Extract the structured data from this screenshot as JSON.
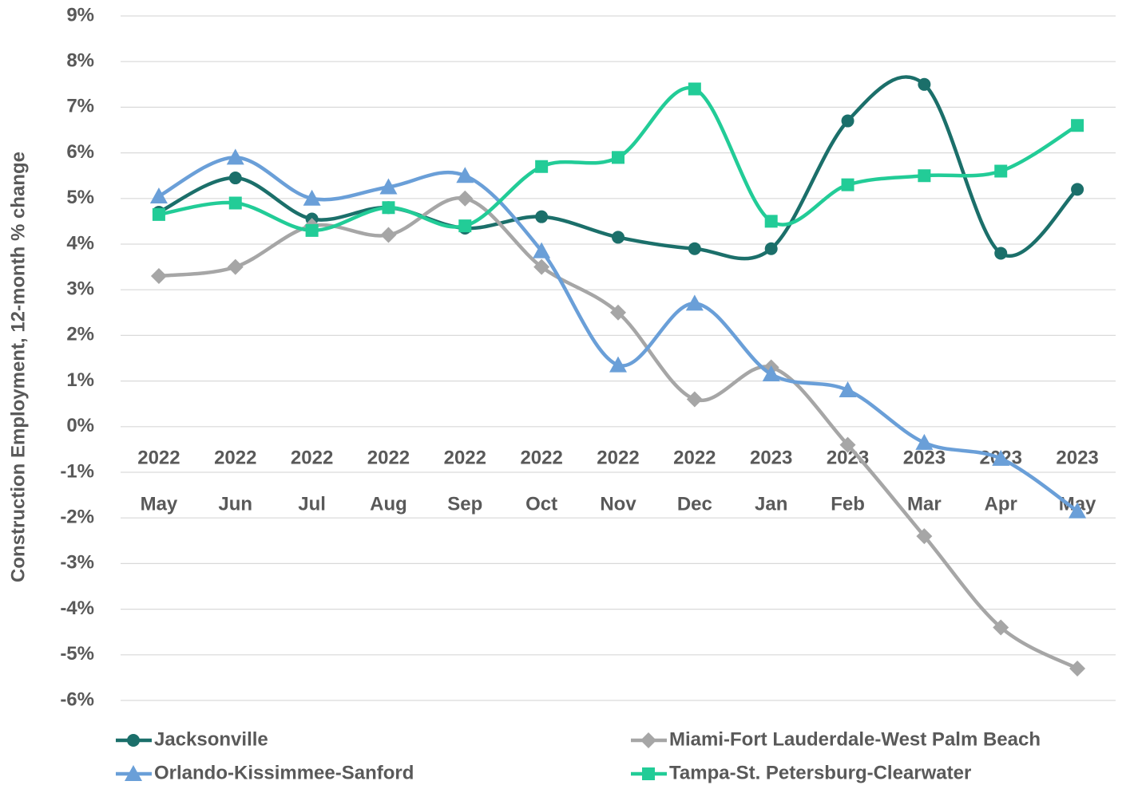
{
  "chart_data": {
    "type": "line",
    "smooth": true,
    "grid": true,
    "legend": "bottom",
    "ylabel": "Construction  Employment, 12-month % change",
    "categories": [
      [
        "2022",
        "May"
      ],
      [
        "2022",
        "Jun"
      ],
      [
        "2022",
        "Jul"
      ],
      [
        "2022",
        "Aug"
      ],
      [
        "2022",
        "Sep"
      ],
      [
        "2022",
        "Oct"
      ],
      [
        "2022",
        "Nov"
      ],
      [
        "2022",
        "Dec"
      ],
      [
        "2023",
        "Jan"
      ],
      [
        "2023",
        "Feb"
      ],
      [
        "2023",
        "Mar"
      ],
      [
        "2023",
        "Apr"
      ],
      [
        "2023",
        "May"
      ]
    ],
    "ylim": [
      -6,
      9
    ],
    "yticks": [
      {
        "value": 9,
        "label": "9%"
      },
      {
        "value": 8,
        "label": "8%"
      },
      {
        "value": 7,
        "label": "7%"
      },
      {
        "value": 6,
        "label": "6%"
      },
      {
        "value": 5,
        "label": "5%"
      },
      {
        "value": 4,
        "label": "4%"
      },
      {
        "value": 3,
        "label": "3%"
      },
      {
        "value": 2,
        "label": "2%"
      },
      {
        "value": 1,
        "label": "1%"
      },
      {
        "value": 0,
        "label": "0%"
      },
      {
        "value": -1,
        "label": "-1%"
      },
      {
        "value": -2,
        "label": "-2%"
      },
      {
        "value": -3,
        "label": "-3%"
      },
      {
        "value": -4,
        "label": "-4%"
      },
      {
        "value": -5,
        "label": "-5%"
      },
      {
        "value": -6,
        "label": "-6%"
      }
    ],
    "series": [
      {
        "name": "Jacksonville",
        "color": "#1b6f6a",
        "marker": "circle",
        "values": [
          4.7,
          5.45,
          4.55,
          4.8,
          4.35,
          4.6,
          4.15,
          3.9,
          3.9,
          6.7,
          7.5,
          3.8,
          5.2
        ]
      },
      {
        "name": "Miami-Fort Lauderdale-West Palm Beach",
        "color": "#a6a6a6",
        "marker": "diamond",
        "values": [
          3.3,
          3.5,
          4.4,
          4.2,
          5.0,
          3.5,
          2.5,
          0.6,
          1.3,
          -0.4,
          -2.4,
          -4.4,
          -5.3
        ]
      },
      {
        "name": "Orlando-Kissimmee-Sanford",
        "color": "#6a9fd8",
        "marker": "triangle",
        "values": [
          5.05,
          5.9,
          5.0,
          5.25,
          5.5,
          3.85,
          1.35,
          2.7,
          1.15,
          0.8,
          -0.35,
          -0.7,
          -1.85
        ]
      },
      {
        "name": "Tampa-St. Petersburg-Clearwater",
        "color": "#22cc97",
        "marker": "square",
        "values": [
          4.65,
          4.9,
          4.3,
          4.8,
          4.4,
          5.7,
          5.9,
          7.4,
          4.5,
          5.3,
          5.5,
          5.6,
          6.6
        ]
      }
    ]
  }
}
